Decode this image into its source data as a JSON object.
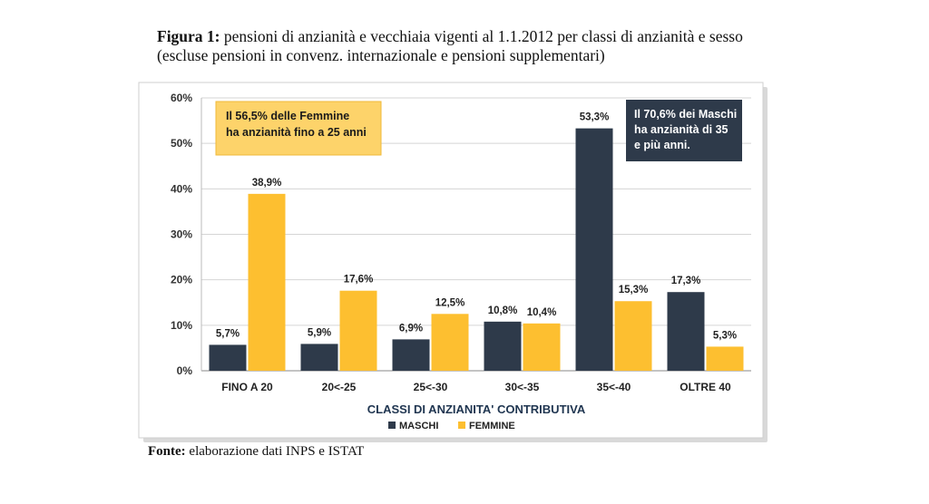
{
  "figure": {
    "label": "Figura 1:",
    "title_line1": "pensioni di anzianità e vecchiaia vigenti al 1.1.2012 per classi di anzianità e sesso",
    "title_line2": "(escluse pensioni in convenz. internazionale e pensioni supplementari)"
  },
  "source": {
    "label": "Fonte:",
    "text": "elaborazione dati INPS e ISTAT"
  },
  "chart_data": {
    "type": "bar",
    "xlabel": "CLASSI DI ANZIANITA' CONTRIBUTIVA",
    "ylabel": "",
    "ylim": [
      0,
      60
    ],
    "yticks": [
      "0%",
      "10%",
      "20%",
      "30%",
      "40%",
      "50%",
      "60%"
    ],
    "grid": true,
    "legend_position": "bottom",
    "categories": [
      "FINO A 20",
      "20<-25",
      "25<-30",
      "30<-35",
      "35<-40",
      "OLTRE 40"
    ],
    "series": [
      {
        "name": "MASCHI",
        "color": "#2e3a4a",
        "values": [
          5.7,
          5.9,
          6.9,
          10.8,
          53.3,
          17.3
        ],
        "labels": [
          "5,7%",
          "5,9%",
          "6,9%",
          "10,8%",
          "53,3%",
          "17,3%"
        ]
      },
      {
        "name": "FEMMINE",
        "color": "#fdbf30",
        "values": [
          38.9,
          17.6,
          12.5,
          10.4,
          15.3,
          5.3
        ],
        "labels": [
          "38,9%",
          "17,6%",
          "12,5%",
          "10,4%",
          "15,3%",
          "5,3%"
        ]
      }
    ],
    "annotations": [
      {
        "lines": [
          "Il 56,5% delle Femmine",
          "ha anzianità fino a 25 anni"
        ],
        "style": "yellow"
      },
      {
        "lines": [
          "Il 70,6% dei Maschi",
          "ha anzianità di 35",
          "e più anni."
        ],
        "style": "dark"
      }
    ]
  }
}
